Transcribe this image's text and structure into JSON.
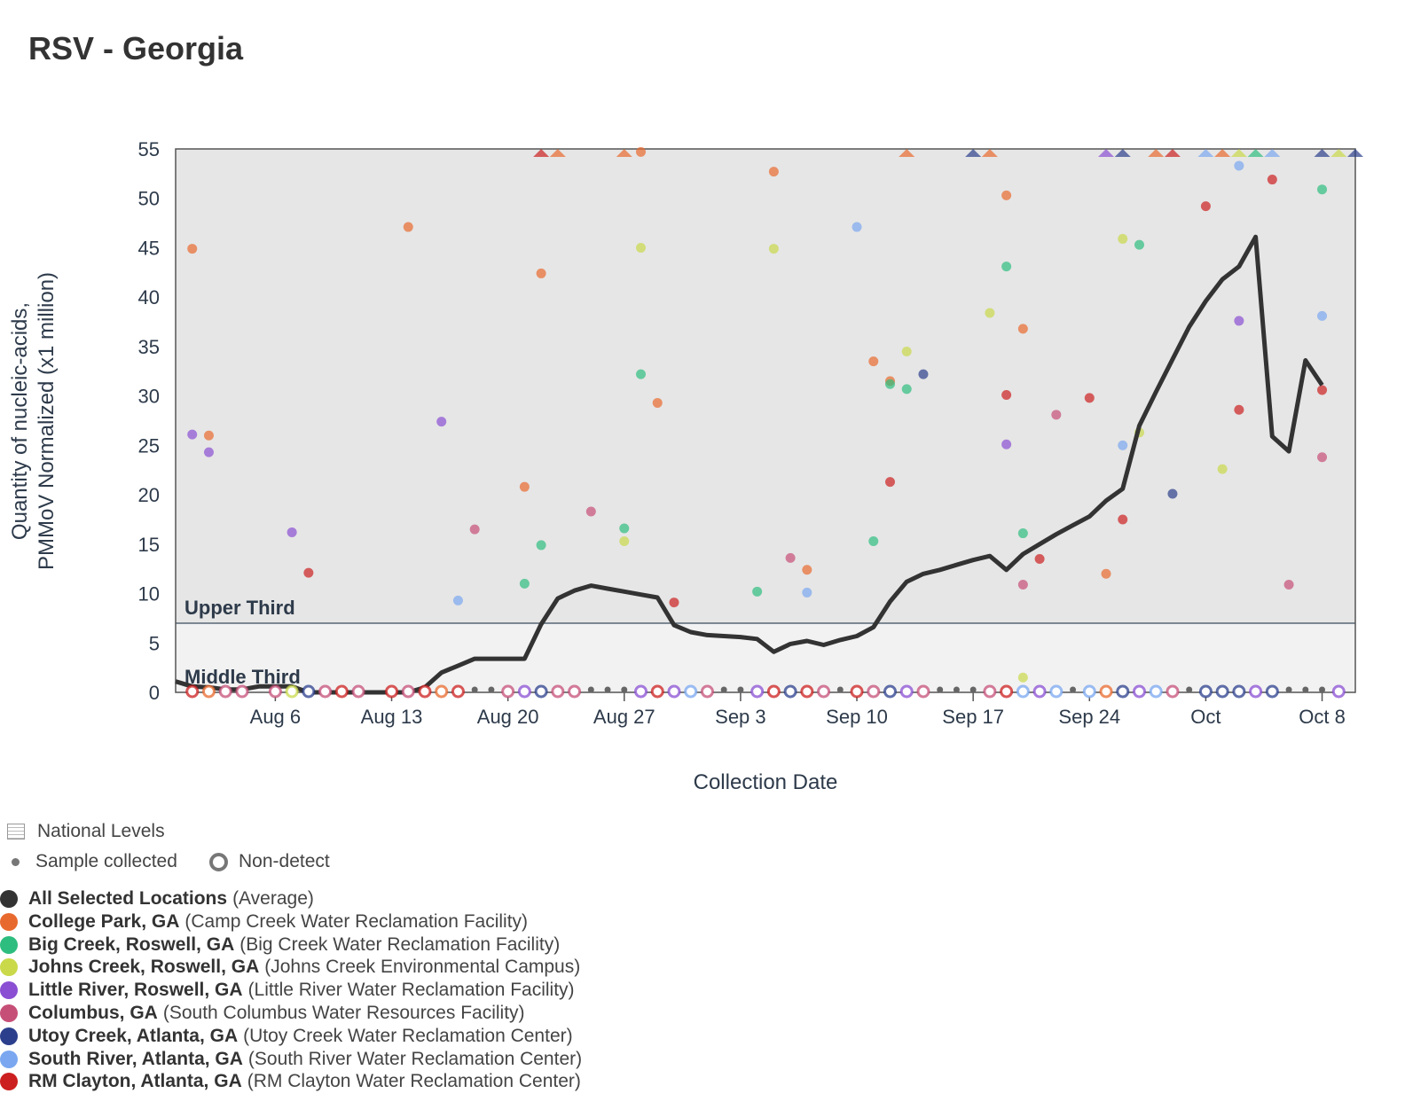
{
  "title": "RSV - Georgia",
  "chart_data": {
    "type": "scatter",
    "title": "RSV - Georgia",
    "xlabel": "Collection Date",
    "ylabel": [
      "Quantity of nucleic-acids,",
      "PMMoV Normalized (x1 million)"
    ],
    "ylim": [
      0,
      55
    ],
    "yticks": [
      0,
      5,
      10,
      15,
      20,
      25,
      30,
      35,
      40,
      45,
      50,
      55
    ],
    "xlim": [
      "2024-07-31",
      "2024-10-10"
    ],
    "xticks": [
      {
        "date": "2024-08-06",
        "label": "Aug 6"
      },
      {
        "date": "2024-08-13",
        "label": "Aug 13"
      },
      {
        "date": "2024-08-20",
        "label": "Aug 20"
      },
      {
        "date": "2024-08-27",
        "label": "Aug 27"
      },
      {
        "date": "2024-09-03",
        "label": "Sep 3"
      },
      {
        "date": "2024-09-10",
        "label": "Sep 10"
      },
      {
        "date": "2024-09-17",
        "label": "Sep 17"
      },
      {
        "date": "2024-09-24",
        "label": "Sep 24"
      },
      {
        "date": "2024-10-01",
        "label": "Oct"
      },
      {
        "date": "2024-10-08",
        "label": "Oct 8"
      }
    ],
    "bands": [
      {
        "label": "Upper Third",
        "from": 7.0,
        "to": 55,
        "color": "#e6e6e6"
      },
      {
        "label": "Middle Third",
        "from": 0,
        "to": 7.0,
        "color": "#f2f2f2"
      }
    ],
    "grid": false,
    "average": {
      "name": "All Selected Locations",
      "color": "#333333",
      "points": [
        [
          "2024-07-31",
          1.1
        ],
        [
          "2024-08-01",
          0.6
        ],
        [
          "2024-08-02",
          0.5
        ],
        [
          "2024-08-03",
          0.3
        ],
        [
          "2024-08-04",
          0.3
        ],
        [
          "2024-08-05",
          0.6
        ],
        [
          "2024-08-06",
          0.6
        ],
        [
          "2024-08-07",
          0.6
        ],
        [
          "2024-08-08",
          0.0
        ],
        [
          "2024-08-09",
          0.0
        ],
        [
          "2024-08-10",
          0.0
        ],
        [
          "2024-08-11",
          0.0
        ],
        [
          "2024-08-12",
          0.0
        ],
        [
          "2024-08-13",
          0.0
        ],
        [
          "2024-08-14",
          0.0
        ],
        [
          "2024-08-15",
          0.5
        ],
        [
          "2024-08-16",
          2.0
        ],
        [
          "2024-08-17",
          2.7
        ],
        [
          "2024-08-18",
          3.4
        ],
        [
          "2024-08-19",
          3.4
        ],
        [
          "2024-08-20",
          3.4
        ],
        [
          "2024-08-21",
          3.4
        ],
        [
          "2024-08-22",
          6.9
        ],
        [
          "2024-08-23",
          9.5
        ],
        [
          "2024-08-24",
          10.3
        ],
        [
          "2024-08-25",
          10.8
        ],
        [
          "2024-08-26",
          10.5
        ],
        [
          "2024-08-27",
          10.2
        ],
        [
          "2024-08-28",
          9.9
        ],
        [
          "2024-08-29",
          9.6
        ],
        [
          "2024-08-30",
          6.8
        ],
        [
          "2024-08-31",
          6.1
        ],
        [
          "2024-09-01",
          5.8
        ],
        [
          "2024-09-02",
          5.7
        ],
        [
          "2024-09-03",
          5.6
        ],
        [
          "2024-09-04",
          5.4
        ],
        [
          "2024-09-05",
          4.1
        ],
        [
          "2024-09-06",
          4.9
        ],
        [
          "2024-09-07",
          5.2
        ],
        [
          "2024-09-08",
          4.8
        ],
        [
          "2024-09-09",
          5.3
        ],
        [
          "2024-09-10",
          5.7
        ],
        [
          "2024-09-11",
          6.6
        ],
        [
          "2024-09-12",
          9.2
        ],
        [
          "2024-09-13",
          11.2
        ],
        [
          "2024-09-14",
          12.0
        ],
        [
          "2024-09-15",
          12.4
        ],
        [
          "2024-09-16",
          12.9
        ],
        [
          "2024-09-17",
          13.4
        ],
        [
          "2024-09-18",
          13.8
        ],
        [
          "2024-09-19",
          12.4
        ],
        [
          "2024-09-20",
          14.0
        ],
        [
          "2024-09-21",
          15.0
        ],
        [
          "2024-09-22",
          16.0
        ],
        [
          "2024-09-23",
          16.9
        ],
        [
          "2024-09-24",
          17.8
        ],
        [
          "2024-09-25",
          19.4
        ],
        [
          "2024-09-26",
          20.6
        ],
        [
          "2024-09-27",
          27.0
        ],
        [
          "2024-09-28",
          30.4
        ],
        [
          "2024-09-29",
          33.7
        ],
        [
          "2024-09-30",
          37.0
        ],
        [
          "2024-10-01",
          39.6
        ],
        [
          "2024-10-02",
          41.8
        ],
        [
          "2024-10-03",
          43.1
        ],
        [
          "2024-10-04",
          46.1
        ],
        [
          "2024-10-05",
          25.9
        ],
        [
          "2024-10-06",
          24.4
        ],
        [
          "2024-10-07",
          33.6
        ],
        [
          "2024-10-08",
          31.1
        ]
      ]
    },
    "series": [
      {
        "name": "College Park, GA",
        "facility": "Camp Creek Water Reclamation Facility",
        "color": "#e8692e",
        "points": [
          [
            "2024-08-01",
            44.9
          ],
          [
            "2024-08-02",
            26.0
          ],
          [
            "2024-08-14",
            47.1
          ],
          [
            "2024-08-21",
            20.8
          ],
          [
            "2024-08-22",
            42.4
          ],
          [
            "2024-08-28",
            54.7
          ],
          [
            "2024-08-29",
            29.3
          ],
          [
            "2024-09-05",
            52.7
          ],
          [
            "2024-09-07",
            12.4
          ],
          [
            "2024-09-11",
            33.5
          ],
          [
            "2024-09-12",
            31.5
          ],
          [
            "2024-09-19",
            50.3
          ],
          [
            "2024-09-20",
            36.8
          ],
          [
            "2024-09-25",
            12.0
          ]
        ],
        "above": [
          "2024-08-23",
          "2024-08-27",
          "2024-09-13",
          "2024-09-18",
          "2024-09-28",
          "2024-10-02"
        ]
      },
      {
        "name": "Big Creek, Roswell, GA",
        "facility": "Big Creek Water Reclamation Facility",
        "color": "#2dbd7f",
        "points": [
          [
            "2024-08-21",
            11.0
          ],
          [
            "2024-08-22",
            14.9
          ],
          [
            "2024-08-27",
            16.6
          ],
          [
            "2024-08-28",
            32.2
          ],
          [
            "2024-09-04",
            10.2
          ],
          [
            "2024-09-11",
            15.3
          ],
          [
            "2024-09-12",
            31.2
          ],
          [
            "2024-09-13",
            30.7
          ],
          [
            "2024-09-19",
            43.1
          ],
          [
            "2024-09-20",
            16.1
          ],
          [
            "2024-09-27",
            45.3
          ],
          [
            "2024-10-08",
            50.9
          ]
        ],
        "above": [
          "2024-10-04"
        ]
      },
      {
        "name": "Johns Creek, Roswell, GA",
        "facility": "Johns Creek Environmental Campus",
        "color": "#c9d94a",
        "points": [
          [
            "2024-08-27",
            15.3
          ],
          [
            "2024-08-28",
            45.0
          ],
          [
            "2024-09-05",
            44.9
          ],
          [
            "2024-09-13",
            34.5
          ],
          [
            "2024-09-18",
            38.4
          ],
          [
            "2024-09-20",
            1.5
          ],
          [
            "2024-09-26",
            45.9
          ],
          [
            "2024-09-27",
            26.3
          ],
          [
            "2024-10-02",
            22.6
          ]
        ],
        "above": [
          "2024-10-03",
          "2024-10-09"
        ]
      },
      {
        "name": "Little River, Roswell, GA",
        "facility": "Little River Water Reclamation Facility",
        "color": "#8a4fd3",
        "points": [
          [
            "2024-08-01",
            26.1
          ],
          [
            "2024-08-02",
            24.3
          ],
          [
            "2024-08-07",
            16.2
          ],
          [
            "2024-08-16",
            27.4
          ],
          [
            "2024-09-19",
            25.1
          ],
          [
            "2024-10-03",
            37.6
          ]
        ],
        "above": [
          "2024-09-25"
        ]
      },
      {
        "name": "Columbus, GA",
        "facility": "South Columbus Water Resources Facility",
        "color": "#c64f78",
        "points": [
          [
            "2024-08-18",
            16.5
          ],
          [
            "2024-08-25",
            18.3
          ],
          [
            "2024-09-06",
            13.6
          ],
          [
            "2024-09-20",
            10.9
          ],
          [
            "2024-09-22",
            28.1
          ],
          [
            "2024-10-06",
            10.9
          ],
          [
            "2024-10-08",
            23.8
          ]
        ],
        "above": []
      },
      {
        "name": "Utoy Creek, Atlanta, GA",
        "facility": "Utoy Creek Water Reclamation Center",
        "color": "#2b3f8c",
        "points": [
          [
            "2024-09-14",
            32.2
          ],
          [
            "2024-09-29",
            20.1
          ]
        ],
        "above": [
          "2024-09-17",
          "2024-09-26",
          "2024-10-08",
          "2024-10-10"
        ]
      },
      {
        "name": "South River, Atlanta, GA",
        "facility": "South River Water Reclamation Center",
        "color": "#7aa7f0",
        "points": [
          [
            "2024-08-17",
            9.3
          ],
          [
            "2024-09-07",
            10.1
          ],
          [
            "2024-09-10",
            47.1
          ],
          [
            "2024-09-26",
            25.0
          ],
          [
            "2024-10-03",
            53.3
          ],
          [
            "2024-10-08",
            38.1
          ]
        ],
        "above": [
          "2024-10-01",
          "2024-10-05"
        ]
      },
      {
        "name": "RM Clayton, Atlanta, GA",
        "facility": "RM Clayton Water Reclamation Center",
        "color": "#cc1f1f",
        "points": [
          [
            "2024-08-08",
            12.1
          ],
          [
            "2024-08-30",
            9.1
          ],
          [
            "2024-09-12",
            21.3
          ],
          [
            "2024-09-19",
            30.1
          ],
          [
            "2024-09-21",
            13.5
          ],
          [
            "2024-09-24",
            29.8
          ],
          [
            "2024-09-26",
            17.5
          ],
          [
            "2024-10-01",
            49.2
          ],
          [
            "2024-10-03",
            28.6
          ],
          [
            "2024-10-05",
            51.9
          ],
          [
            "2024-10-08",
            30.6
          ]
        ],
        "above": [
          "2024-08-22",
          "2024-09-29"
        ]
      }
    ],
    "non_detects": [
      {
        "date": "2024-08-01",
        "color": "#cc1f1f"
      },
      {
        "date": "2024-08-02",
        "color": "#e8692e"
      },
      {
        "date": "2024-08-03",
        "color": "#c64f78"
      },
      {
        "date": "2024-08-04",
        "color": "#c64f78"
      },
      {
        "date": "2024-08-06",
        "color": "#c64f78"
      },
      {
        "date": "2024-08-07",
        "color": "#c9d94a"
      },
      {
        "date": "2024-08-08",
        "color": "#2b3f8c"
      },
      {
        "date": "2024-08-09",
        "color": "#c64f78"
      },
      {
        "date": "2024-08-10",
        "color": "#cc1f1f"
      },
      {
        "date": "2024-08-11",
        "color": "#c64f78"
      },
      {
        "date": "2024-08-13",
        "color": "#cc1f1f"
      },
      {
        "date": "2024-08-14",
        "color": "#c64f78"
      },
      {
        "date": "2024-08-15",
        "color": "#cc1f1f"
      },
      {
        "date": "2024-08-16",
        "color": "#e8692e"
      },
      {
        "date": "2024-08-17",
        "color": "#cc1f1f"
      },
      {
        "date": "2024-08-20",
        "color": "#c64f78"
      },
      {
        "date": "2024-08-21",
        "color": "#8a4fd3"
      },
      {
        "date": "2024-08-22",
        "color": "#2b3f8c"
      },
      {
        "date": "2024-08-23",
        "color": "#c64f78"
      },
      {
        "date": "2024-08-24",
        "color": "#c64f78"
      },
      {
        "date": "2024-08-28",
        "color": "#8a4fd3"
      },
      {
        "date": "2024-08-29",
        "color": "#cc1f1f"
      },
      {
        "date": "2024-08-30",
        "color": "#8a4fd3"
      },
      {
        "date": "2024-08-31",
        "color": "#7aa7f0"
      },
      {
        "date": "2024-09-01",
        "color": "#c64f78"
      },
      {
        "date": "2024-09-04",
        "color": "#8a4fd3"
      },
      {
        "date": "2024-09-05",
        "color": "#cc1f1f"
      },
      {
        "date": "2024-09-06",
        "color": "#2b3f8c"
      },
      {
        "date": "2024-09-07",
        "color": "#cc1f1f"
      },
      {
        "date": "2024-09-08",
        "color": "#c64f78"
      },
      {
        "date": "2024-09-10",
        "color": "#cc1f1f"
      },
      {
        "date": "2024-09-11",
        "color": "#c64f78"
      },
      {
        "date": "2024-09-12",
        "color": "#2b3f8c"
      },
      {
        "date": "2024-09-13",
        "color": "#8a4fd3"
      },
      {
        "date": "2024-09-14",
        "color": "#c64f78"
      },
      {
        "date": "2024-09-18",
        "color": "#c64f78"
      },
      {
        "date": "2024-09-19",
        "color": "#cc1f1f"
      },
      {
        "date": "2024-09-20",
        "color": "#7aa7f0"
      },
      {
        "date": "2024-09-21",
        "color": "#8a4fd3"
      },
      {
        "date": "2024-09-22",
        "color": "#7aa7f0"
      },
      {
        "date": "2024-09-24",
        "color": "#7aa7f0"
      },
      {
        "date": "2024-09-25",
        "color": "#e8692e"
      },
      {
        "date": "2024-09-26",
        "color": "#2b3f8c"
      },
      {
        "date": "2024-09-27",
        "color": "#8a4fd3"
      },
      {
        "date": "2024-09-28",
        "color": "#7aa7f0"
      },
      {
        "date": "2024-09-29",
        "color": "#c64f78"
      },
      {
        "date": "2024-10-01",
        "color": "#2b3f8c"
      },
      {
        "date": "2024-10-02",
        "color": "#2b3f8c"
      },
      {
        "date": "2024-10-03",
        "color": "#2b3f8c"
      },
      {
        "date": "2024-10-04",
        "color": "#8a4fd3"
      },
      {
        "date": "2024-10-05",
        "color": "#2b3f8c"
      },
      {
        "date": "2024-10-09",
        "color": "#8a4fd3"
      }
    ],
    "samples_collected": [
      "2024-08-17",
      "2024-08-18",
      "2024-08-19",
      "2024-08-25",
      "2024-08-26",
      "2024-08-27",
      "2024-09-02",
      "2024-09-03",
      "2024-09-09",
      "2024-09-15",
      "2024-09-16",
      "2024-09-17",
      "2024-09-22",
      "2024-09-23",
      "2024-09-30",
      "2024-10-06",
      "2024-10-07",
      "2024-10-08"
    ]
  },
  "legend": {
    "national_levels": "National Levels",
    "sample_collected": "Sample collected",
    "non_detect": "Non-detect",
    "items": [
      {
        "name": "All Selected Locations",
        "facility": "(Average)",
        "color": "#333333"
      },
      {
        "name": "College Park, GA",
        "facility": "(Camp Creek Water Reclamation Facility)",
        "color": "#e8692e"
      },
      {
        "name": "Big Creek, Roswell, GA",
        "facility": "(Big Creek Water Reclamation Facility)",
        "color": "#2dbd7f"
      },
      {
        "name": "Johns Creek, Roswell, GA",
        "facility": "(Johns Creek Environmental Campus)",
        "color": "#c9d94a"
      },
      {
        "name": "Little River, Roswell, GA",
        "facility": "(Little River Water Reclamation Facility)",
        "color": "#8a4fd3"
      },
      {
        "name": "Columbus, GA",
        "facility": "(South Columbus Water Resources Facility)",
        "color": "#c64f78"
      },
      {
        "name": "Utoy Creek, Atlanta, GA",
        "facility": "(Utoy Creek Water Reclamation Center)",
        "color": "#2b3f8c"
      },
      {
        "name": "South River, Atlanta, GA",
        "facility": "(South River Water Reclamation Center)",
        "color": "#7aa7f0"
      },
      {
        "name": "RM Clayton, Atlanta, GA",
        "facility": "(RM Clayton Water Reclamation Center)",
        "color": "#cc1f1f"
      }
    ]
  }
}
